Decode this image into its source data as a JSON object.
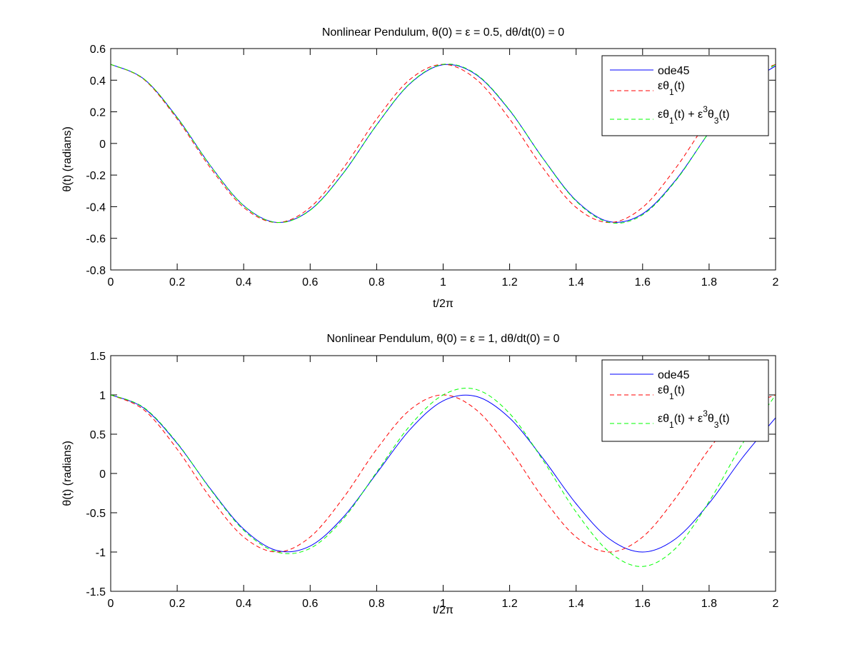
{
  "chart_data": [
    {
      "type": "line",
      "title": "Nonlinear Pendulum, θ(0) = ε = 0.5, dθ/dt(0) = 0",
      "xlabel": "t/2π",
      "ylabel": "θ(t) (radians)",
      "xlim": [
        0,
        2
      ],
      "ylim": [
        -0.8,
        0.6
      ],
      "xticks": [
        "0",
        "0.2",
        "0.4",
        "0.6",
        "0.8",
        "1",
        "1.2",
        "1.4",
        "1.6",
        "1.8",
        "2"
      ],
      "yticks": [
        "-0.8",
        "-0.6",
        "-0.4",
        "-0.2",
        "0",
        "0.2",
        "0.4",
        "0.6"
      ],
      "legend_position": "top-right",
      "x": [
        0,
        0.1,
        0.2,
        0.3,
        0.4,
        0.5,
        0.6,
        0.7,
        0.8,
        0.9,
        1.0,
        1.1,
        1.2,
        1.3,
        1.4,
        1.5,
        1.6,
        1.7,
        1.8,
        1.9,
        2.0
      ],
      "series": [
        {
          "name": "ode45",
          "color": "#0000ff",
          "dash": "solid",
          "values": [
            0.5,
            0.4073,
            0.1637,
            -0.1406,
            -0.3928,
            -0.4994,
            -0.421,
            -0.1865,
            0.1171,
            0.3774,
            0.4976,
            0.4335,
            0.2088,
            -0.0934,
            -0.3611,
            -0.4947,
            -0.4452,
            -0.2306,
            0.0694,
            0.3437,
            0.4906
          ]
        },
        {
          "name": "εθ1(t)",
          "color": "#ff0000",
          "dash": "dashed",
          "values": [
            0.5,
            0.4045,
            0.1545,
            -0.1545,
            -0.4045,
            -0.5,
            -0.4045,
            -0.1545,
            0.1545,
            0.4045,
            0.5,
            0.4045,
            0.1545,
            -0.1545,
            -0.4045,
            -0.5,
            -0.4045,
            -0.1545,
            0.1545,
            0.4045,
            0.5
          ]
        },
        {
          "name": "εθ1(t) + ε3θ3(t)",
          "color": "#00ff00",
          "dash": "dashed",
          "values": [
            0.5,
            0.4081,
            0.1645,
            -0.1412,
            -0.3937,
            -0.5,
            -0.4225,
            -0.1879,
            0.1178,
            0.3792,
            0.5,
            0.4369,
            0.2112,
            -0.0945,
            -0.3648,
            -0.5,
            -0.4514,
            -0.2346,
            0.0712,
            0.3504,
            0.5
          ]
        }
      ]
    },
    {
      "type": "line",
      "title": "Nonlinear Pendulum, θ(0) = ε = 1, dθ/dt(0) = 0",
      "xlabel": "t/2π",
      "ylabel": "θ(t) (radians)",
      "xlim": [
        0,
        2
      ],
      "ylim": [
        -1.5,
        1.5
      ],
      "xticks": [
        "0",
        "0.2",
        "0.4",
        "0.6",
        "0.8",
        "1",
        "1.2",
        "1.4",
        "1.6",
        "1.8",
        "2"
      ],
      "yticks": [
        "-1.5",
        "-1",
        "-0.5",
        "0",
        "0.5",
        "1",
        "1.5"
      ],
      "legend_position": "top-right",
      "x": [
        0,
        0.1,
        0.2,
        0.3,
        0.4,
        0.5,
        0.6,
        0.7,
        0.8,
        0.9,
        1.0,
        1.1,
        1.2,
        1.3,
        1.4,
        1.5,
        1.6,
        1.7,
        1.8,
        1.9,
        2.0
      ],
      "series": [
        {
          "name": "ode45",
          "color": "#0000ff",
          "dash": "solid",
          "values": [
            1,
            0.8314,
            0.3823,
            -0.1958,
            -0.708,
            -0.981,
            -0.9234,
            -0.5544,
            0.0016,
            0.5572,
            0.9247,
            0.9803,
            0.7054,
            0.1925,
            -0.3853,
            -0.833,
            -1.0,
            -0.8294,
            -0.3793,
            0.1989,
            0.7096
          ]
        },
        {
          "name": "εθ1(t)",
          "color": "#ff0000",
          "dash": "dashed",
          "values": [
            1,
            0.809,
            0.309,
            -0.309,
            -0.809,
            -1,
            -0.809,
            -0.309,
            0.309,
            0.809,
            1,
            0.809,
            0.309,
            -0.309,
            -0.809,
            -1,
            -0.809,
            -0.309,
            0.309,
            0.809,
            1
          ]
        },
        {
          "name": "εθ1(t) + ε3θ3(t)",
          "color": "#00ff00",
          "dash": "dashed",
          "values": [
            1,
            0.8379,
            0.3895,
            -0.2028,
            -0.7225,
            -1,
            -0.9533,
            -0.5762,
            0.016,
            0.607,
            1,
            1.0687,
            0.763,
            0.1708,
            -0.4917,
            -1,
            -1.1841,
            -0.9497,
            -0.3575,
            0.3762,
            1.0
          ]
        }
      ]
    }
  ],
  "legend_labels": [
    {
      "main": "ode45"
    },
    {
      "a": "εθ",
      "a_sub": "1",
      "b": "(t)"
    },
    {
      "a": "εθ",
      "a_sub": "1",
      "b": "(t) + ε",
      "b_sup": "3",
      "c": "θ",
      "c_sub": "3",
      "d": "(t)"
    }
  ]
}
